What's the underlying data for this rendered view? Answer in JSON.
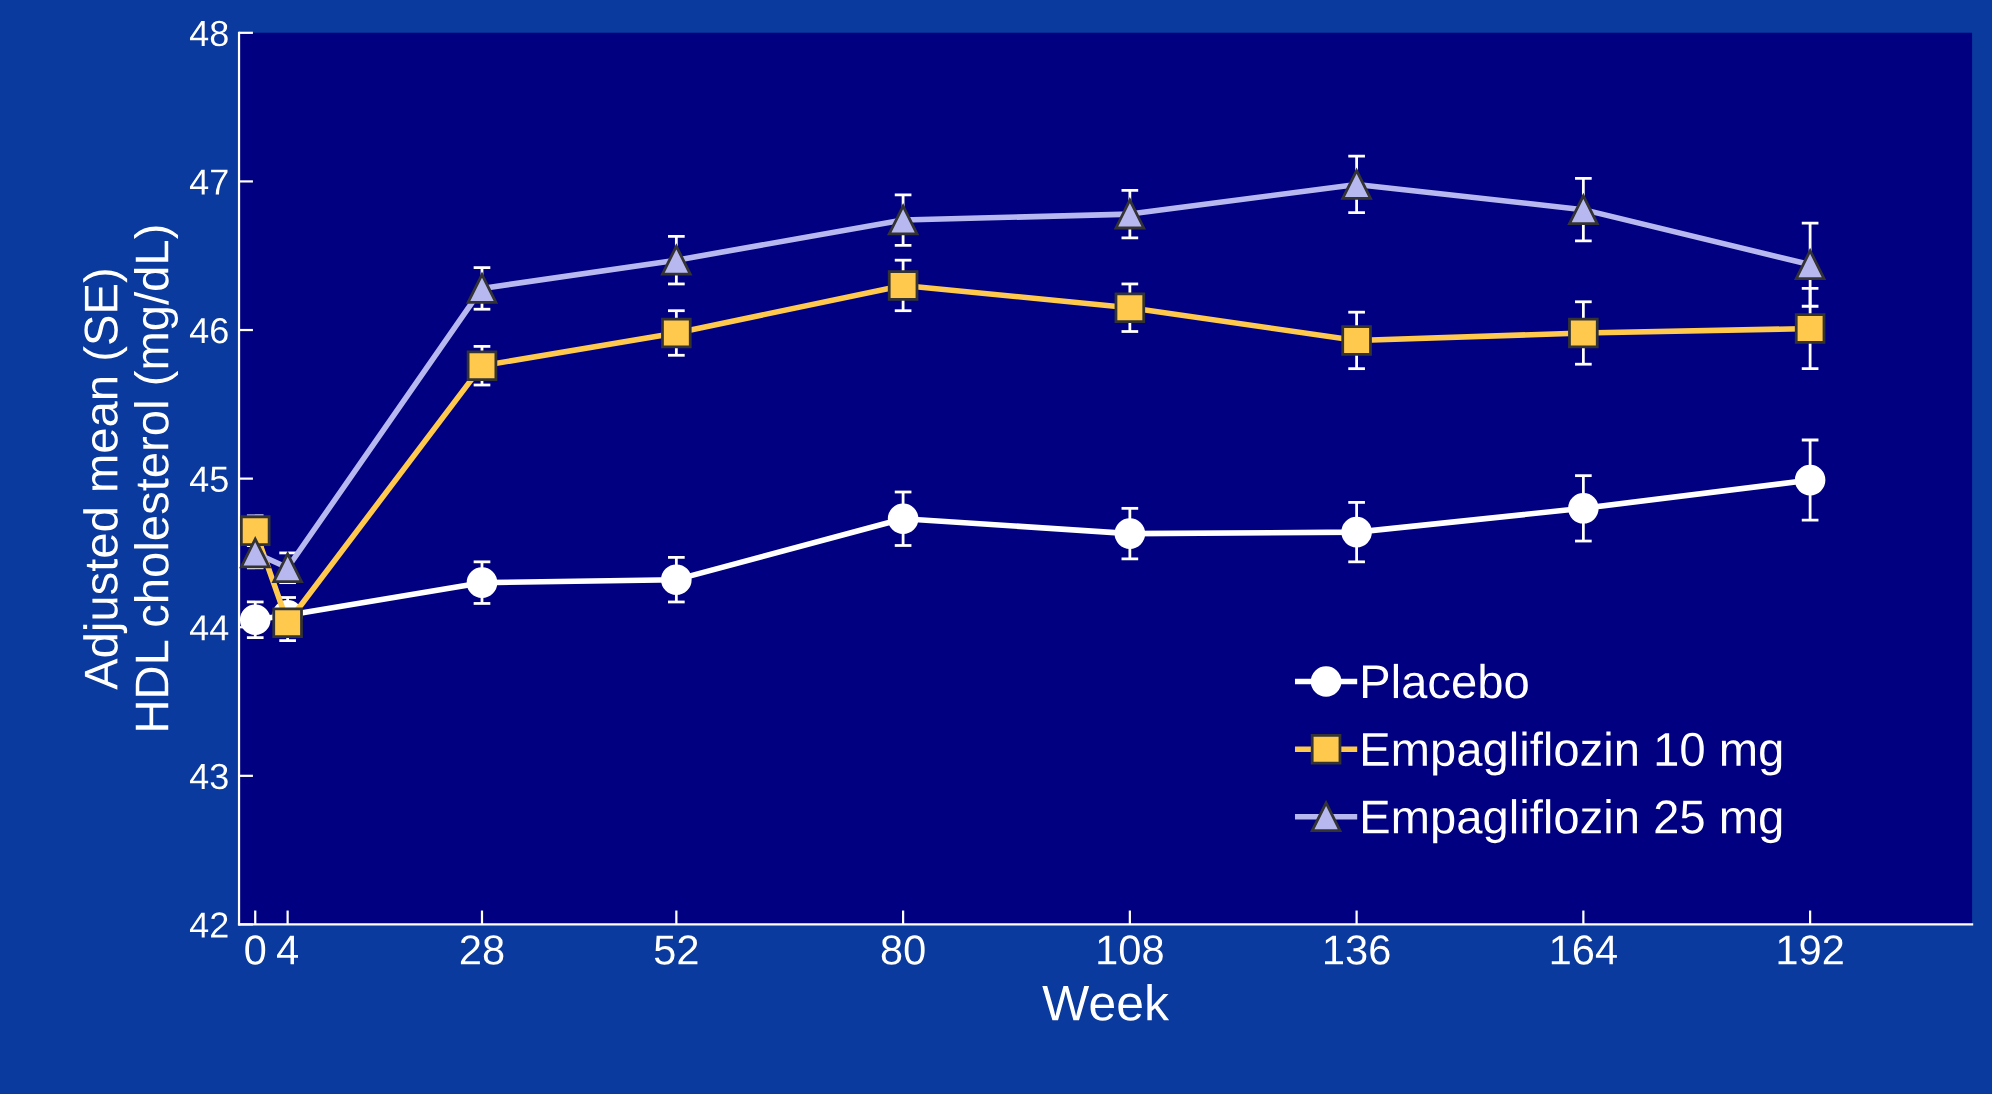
{
  "chart_data": {
    "type": "line",
    "xlabel": "Week",
    "ylabel": "Adjusted mean (SE)\nHDL cholesterol (mg/dL)",
    "x": [
      0,
      4,
      28,
      52,
      80,
      108,
      136,
      164,
      192
    ],
    "xlim": [
      -2,
      212
    ],
    "xticks": [
      0,
      4,
      28,
      52,
      80,
      108,
      136,
      164,
      192
    ],
    "ylim": [
      42,
      48
    ],
    "yticks": [
      42,
      43,
      44,
      45,
      46,
      47,
      48
    ],
    "grid": false,
    "legend": "bottom right",
    "series": [
      {
        "name": "Placebo",
        "color": "#ffffff",
        "marker": "circle",
        "values": [
          44.05,
          44.08,
          44.3,
          44.32,
          44.73,
          44.63,
          44.64,
          44.8,
          44.99
        ],
        "errors": [
          0.12,
          0.12,
          0.14,
          0.15,
          0.18,
          0.17,
          0.2,
          0.22,
          0.27
        ]
      },
      {
        "name": "Empagliflozin 10 mg",
        "color": "#ffc94d",
        "marker": "square",
        "values": [
          44.65,
          44.03,
          45.76,
          45.98,
          46.3,
          46.15,
          45.93,
          45.98,
          46.01
        ],
        "errors": [
          0.1,
          0.12,
          0.13,
          0.15,
          0.17,
          0.16,
          0.19,
          0.21,
          0.27
        ]
      },
      {
        "name": "Empagliflozin 25 mg",
        "color": "#b8b8f0",
        "marker": "triangle",
        "values": [
          44.5,
          44.4,
          46.28,
          46.47,
          46.74,
          46.78,
          46.98,
          46.81,
          46.44
        ],
        "errors": [
          0.1,
          0.1,
          0.14,
          0.16,
          0.17,
          0.16,
          0.19,
          0.21,
          0.28
        ]
      }
    ]
  }
}
